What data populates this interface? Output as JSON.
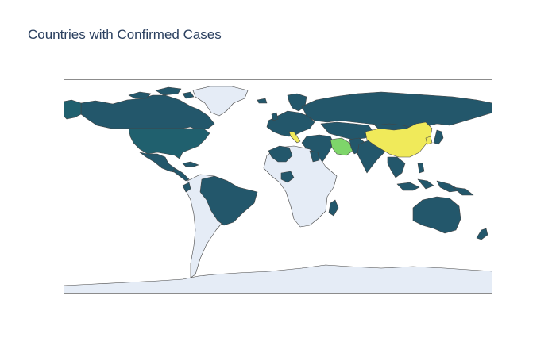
{
  "figure": {
    "title": "Countries with Confirmed Cases"
  },
  "map": {
    "projection": "equirectangular",
    "land_no_data_color": "#e5ecf6",
    "border_color": "#444444",
    "frame_color": "#8c8c8c",
    "colorscale": "viridis",
    "color_levels": {
      "low": "#23576b",
      "low_alt": "#20606e",
      "mid_high": "#7ed56a",
      "high": "#f0ea5a"
    },
    "regions": [
      {
        "name": "Greenland",
        "level": "none"
      },
      {
        "name": "Canada",
        "level": "low"
      },
      {
        "name": "United States",
        "level": "low_alt"
      },
      {
        "name": "Mexico",
        "level": "low"
      },
      {
        "name": "Brazil",
        "level": "low"
      },
      {
        "name": "Ecuador",
        "level": "low"
      },
      {
        "name": "South America (other)",
        "level": "none"
      },
      {
        "name": "Russia",
        "level": "low"
      },
      {
        "name": "Europe",
        "level": "low"
      },
      {
        "name": "Italy",
        "level": "high"
      },
      {
        "name": "Iran",
        "level": "mid_high"
      },
      {
        "name": "China",
        "level": "high"
      },
      {
        "name": "South Korea",
        "level": "high"
      },
      {
        "name": "Japan",
        "level": "low"
      },
      {
        "name": "India",
        "level": "low"
      },
      {
        "name": "Southeast Asia",
        "level": "low"
      },
      {
        "name": "Australia",
        "level": "low"
      },
      {
        "name": "Africa (most)",
        "level": "none"
      },
      {
        "name": "Antarctica",
        "level": "none"
      }
    ]
  }
}
